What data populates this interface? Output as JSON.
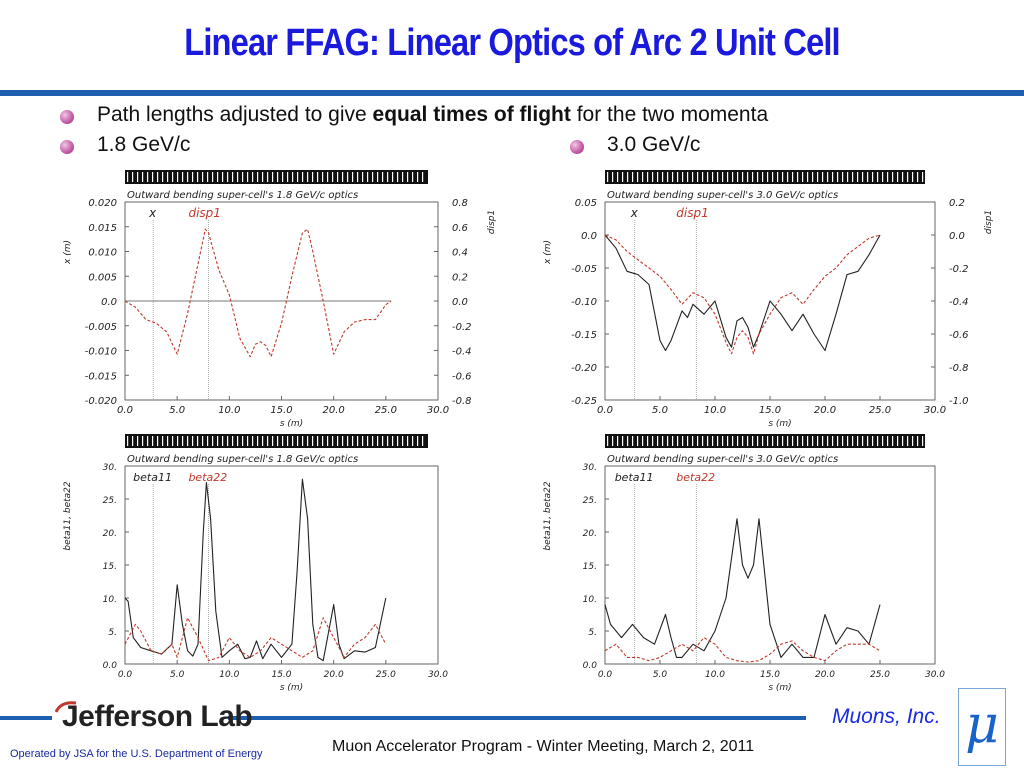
{
  "slide": {
    "title": "Linear FFAG: Linear Optics of Arc 2 Unit Cell",
    "bullet1_pre": "Path lengths adjusted to give ",
    "bullet1_bold": "equal times of flight",
    "bullet1_post": " for the two momenta",
    "bullet2_left": "1.8 GeV/c",
    "bullet2_right": "3.0 GeV/c",
    "footer_org": "Jefferson Lab",
    "footer_operated": "Operated by JSA for the U.S. Department of Energy",
    "footer_meeting": "Muon Accelerator Program - Winter Meeting, March 2, 2011",
    "footer_company": "Muons, Inc.",
    "footer_logo_glyph": "μ",
    "colors": {
      "title": "#1a1adf",
      "rule": "#1f5fb0",
      "dashed": "#c0392b",
      "solid": "#222222"
    }
  },
  "chart_data": [
    {
      "type": "line",
      "title": "Outward bending super-cell's 1.8 GeV/c optics",
      "xlabel": "s (m)",
      "ylabel": "x (m)",
      "y2label": "disp1",
      "xlim": [
        0,
        30
      ],
      "ylim": [
        -0.02,
        0.02
      ],
      "y2lim": [
        -0.8,
        0.8
      ],
      "xticks": [
        "0.0",
        "5.0",
        "10.0",
        "15.0",
        "20.0",
        "25.0",
        "30.0"
      ],
      "yticks": [
        "0.020",
        "0.015",
        "0.010",
        "0.005",
        "0.0",
        "-0.005",
        "-0.010",
        "-0.015",
        "-0.020"
      ],
      "y2ticks": [
        "0.8",
        "0.6",
        "0.4",
        "0.2",
        "0.0",
        "-0.2",
        "-0.4",
        "-0.6",
        "-0.8"
      ],
      "series": [
        {
          "name": "x",
          "axis": "left",
          "style": "solid",
          "x": [
            0,
            25.5
          ],
          "values": [
            0,
            0
          ]
        },
        {
          "name": "disp1",
          "axis": "right",
          "style": "dashed",
          "x": [
            0,
            1,
            2,
            3,
            4,
            5,
            6,
            7,
            7.7,
            8,
            9,
            10,
            11,
            12,
            12.5,
            13,
            13.5,
            14,
            15,
            16,
            17,
            17.5,
            18,
            19,
            20,
            21,
            22,
            23,
            24,
            25,
            25.5
          ],
          "values": [
            0,
            -0.05,
            -0.15,
            -0.18,
            -0.25,
            -0.43,
            -0.1,
            0.3,
            0.58,
            0.55,
            0.25,
            0.05,
            -0.3,
            -0.45,
            -0.35,
            -0.33,
            -0.36,
            -0.45,
            -0.18,
            0.2,
            0.55,
            0.58,
            0.4,
            0.0,
            -0.43,
            -0.25,
            -0.17,
            -0.15,
            -0.15,
            -0.03,
            0
          ]
        }
      ],
      "annotations": [
        "x",
        "disp1"
      ],
      "markers_s": [
        2.7,
        8.0
      ]
    },
    {
      "type": "line",
      "title": "Outward bending super-cell's 3.0 GeV/c optics",
      "xlabel": "s (m)",
      "ylabel": "x (m)",
      "y2label": "disp1",
      "xlim": [
        0,
        30
      ],
      "ylim": [
        -0.25,
        0.05
      ],
      "y2lim": [
        -1.0,
        0.2
      ],
      "xticks": [
        "0.0",
        "5.0",
        "10.0",
        "15.0",
        "20.0",
        "25.0",
        "30.0"
      ],
      "yticks": [
        "0.05",
        "0.0",
        "-0.05",
        "-0.10",
        "-0.15",
        "-0.20",
        "-0.25"
      ],
      "y2ticks": [
        "0.2",
        "0.0",
        "-0.2",
        "-0.4",
        "-0.6",
        "-0.8",
        "-1.0"
      ],
      "series": [
        {
          "name": "x",
          "axis": "left",
          "style": "solid",
          "x": [
            0,
            1,
            2,
            3,
            4,
            5,
            5.5,
            6,
            7,
            7.5,
            8,
            9,
            10,
            11,
            11.5,
            12,
            12.5,
            13,
            13.5,
            14,
            15,
            16,
            17,
            18,
            19,
            20,
            21,
            22,
            23,
            24,
            25
          ],
          "values": [
            0,
            -0.02,
            -0.055,
            -0.06,
            -0.075,
            -0.16,
            -0.175,
            -0.16,
            -0.115,
            -0.125,
            -0.105,
            -0.12,
            -0.1,
            -0.155,
            -0.17,
            -0.13,
            -0.125,
            -0.14,
            -0.17,
            -0.15,
            -0.1,
            -0.12,
            -0.145,
            -0.12,
            -0.15,
            -0.175,
            -0.12,
            -0.06,
            -0.055,
            -0.03,
            0
          ]
        },
        {
          "name": "disp1",
          "axis": "right",
          "style": "dashed",
          "x": [
            0,
            1,
            2,
            3,
            4,
            5,
            6,
            7,
            8,
            9,
            10,
            11,
            11.5,
            12,
            12.5,
            13,
            13.5,
            14,
            15,
            16,
            17,
            18,
            19,
            20,
            21,
            22,
            23,
            24,
            25
          ],
          "values": [
            0,
            -0.03,
            -0.1,
            -0.15,
            -0.2,
            -0.25,
            -0.33,
            -0.42,
            -0.35,
            -0.38,
            -0.48,
            -0.65,
            -0.72,
            -0.62,
            -0.58,
            -0.62,
            -0.72,
            -0.6,
            -0.48,
            -0.38,
            -0.35,
            -0.42,
            -0.33,
            -0.25,
            -0.2,
            -0.12,
            -0.07,
            -0.02,
            0
          ]
        }
      ],
      "annotations": [
        "x",
        "disp1"
      ],
      "markers_s": [
        2.7,
        8.3
      ]
    },
    {
      "type": "line",
      "title": "Outward bending super-cell's 1.8 GeV/c optics",
      "xlabel": "s (m)",
      "ylabel": "beta11, beta22",
      "xlim": [
        0,
        30
      ],
      "ylim": [
        0,
        30
      ],
      "xticks": [
        "0.0",
        "5.0",
        "10.0",
        "15.0",
        "20.0",
        "25.0",
        "30.0"
      ],
      "yticks": [
        "30.",
        "25.",
        "20.",
        "15.",
        "10.",
        "5.",
        "0.0"
      ],
      "series": [
        {
          "name": "beta11",
          "style": "solid",
          "x": [
            0,
            0.3,
            0.8,
            1.5,
            2.5,
            3.5,
            4.5,
            5,
            5.5,
            6,
            6.5,
            7,
            7.5,
            7.8,
            8.2,
            8.7,
            9.3,
            10,
            10.8,
            11.5,
            12,
            12.6,
            13.2,
            14,
            15,
            16,
            16.5,
            17,
            17.5,
            18,
            18.5,
            19,
            20,
            20.5,
            21,
            22,
            23,
            24,
            25
          ],
          "values": [
            10,
            9.5,
            4,
            2.5,
            2,
            1.5,
            3,
            12,
            6,
            2,
            1.2,
            3,
            20,
            27.5,
            22,
            8,
            1,
            2,
            3,
            0.8,
            1,
            3.5,
            0.8,
            3,
            1,
            3,
            14,
            28,
            22,
            6,
            1,
            0.5,
            9,
            3,
            0.8,
            2,
            1.8,
            2.5,
            10
          ]
        },
        {
          "name": "beta22",
          "style": "dashed",
          "x": [
            0,
            1,
            1.5,
            2.5,
            3.5,
            4.5,
            5,
            5.5,
            6,
            7,
            8,
            9,
            10,
            11,
            12,
            13,
            14,
            15,
            16,
            17,
            18,
            19,
            20,
            21,
            22,
            23,
            24,
            25
          ],
          "values": [
            3,
            6,
            5,
            2,
            1.5,
            3,
            1,
            4,
            7,
            4,
            0.5,
            1,
            4,
            2,
            1,
            2,
            4,
            3,
            2,
            1,
            2,
            7,
            4,
            1,
            3,
            4,
            6,
            3
          ]
        }
      ],
      "annotations": [
        "beta11",
        "beta22"
      ],
      "markers_s": [
        2.7,
        8.0
      ]
    },
    {
      "type": "line",
      "title": "Outward bending super-cell's 3.0 GeV/c optics",
      "xlabel": "s (m)",
      "ylabel": "beta11, beta22",
      "xlim": [
        0,
        30
      ],
      "ylim": [
        0,
        30
      ],
      "xticks": [
        "0.0",
        "5.0",
        "10.0",
        "15.0",
        "20.0",
        "25.0",
        "30.0"
      ],
      "yticks": [
        "30.",
        "25.",
        "20.",
        "15.",
        "10.",
        "5.",
        "0.0"
      ],
      "series": [
        {
          "name": "beta11",
          "style": "solid",
          "x": [
            0,
            0.5,
            1.5,
            2.5,
            3.5,
            4.5,
            5.5,
            6,
            6.5,
            7,
            8,
            9,
            10,
            11,
            12,
            12.5,
            13,
            13.5,
            14,
            15,
            16,
            17,
            18,
            19,
            20,
            21,
            22,
            23,
            24,
            25
          ],
          "values": [
            9,
            6,
            4,
            6,
            4,
            3,
            7.5,
            4,
            1,
            1,
            3,
            2,
            5,
            10,
            22,
            15,
            13,
            15,
            22,
            6,
            1,
            3,
            1,
            1,
            7.5,
            3,
            5.5,
            5,
            3,
            9
          ]
        },
        {
          "name": "beta22",
          "style": "dashed",
          "x": [
            0,
            1,
            2,
            3,
            4,
            5,
            6,
            7,
            8,
            9,
            10,
            11,
            12,
            13,
            14,
            15,
            16,
            17,
            18,
            19,
            20,
            21,
            22,
            23,
            24,
            25
          ],
          "values": [
            2,
            3,
            1,
            1,
            0.5,
            1,
            2,
            3,
            2,
            4,
            3,
            1,
            0.5,
            0.3,
            0.5,
            1.5,
            3,
            3.5,
            2,
            1,
            0.5,
            2,
            3,
            3,
            3,
            2
          ]
        }
      ],
      "annotations": [
        "beta11",
        "beta22"
      ],
      "markers_s": [
        2.7,
        8.3
      ]
    }
  ]
}
